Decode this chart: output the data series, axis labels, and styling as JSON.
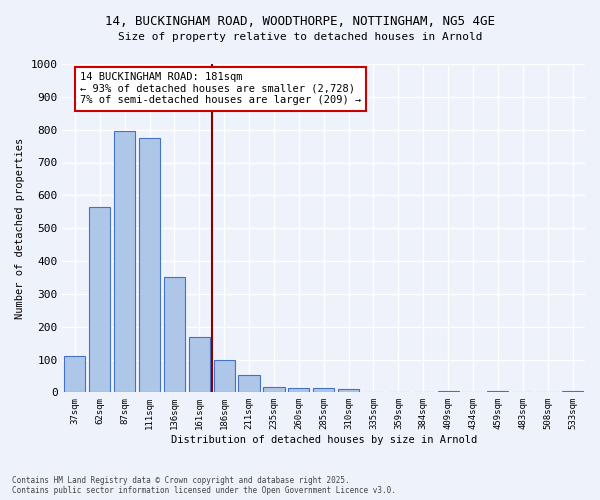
{
  "title_line1": "14, BUCKINGHAM ROAD, WOODTHORPE, NOTTINGHAM, NG5 4GE",
  "title_line2": "Size of property relative to detached houses in Arnold",
  "xlabel": "Distribution of detached houses by size in Arnold",
  "ylabel": "Number of detached properties",
  "categories": [
    "37sqm",
    "62sqm",
    "87sqm",
    "111sqm",
    "136sqm",
    "161sqm",
    "186sqm",
    "211sqm",
    "235sqm",
    "260sqm",
    "285sqm",
    "310sqm",
    "335sqm",
    "359sqm",
    "384sqm",
    "409sqm",
    "434sqm",
    "459sqm",
    "483sqm",
    "508sqm",
    "533sqm"
  ],
  "values": [
    110,
    565,
    795,
    775,
    350,
    168,
    97,
    52,
    16,
    12,
    12,
    9,
    0,
    0,
    0,
    5,
    0,
    5,
    0,
    0,
    5
  ],
  "bar_color": "#aec6e8",
  "bar_edge_color": "#4472c4",
  "background_color": "#eef2fb",
  "grid_color": "#ffffff",
  "vline_index": 6,
  "vline_color": "#8b0000",
  "annotation_text": "14 BUCKINGHAM ROAD: 181sqm\n← 93% of detached houses are smaller (2,728)\n7% of semi-detached houses are larger (209) →",
  "annotation_box_facecolor": "#ffffff",
  "annotation_box_edgecolor": "#cc0000",
  "ylim": [
    0,
    1000
  ],
  "yticks": [
    0,
    100,
    200,
    300,
    400,
    500,
    600,
    700,
    800,
    900,
    1000
  ],
  "footer_line1": "Contains HM Land Registry data © Crown copyright and database right 2025.",
  "footer_line2": "Contains public sector information licensed under the Open Government Licence v3.0."
}
